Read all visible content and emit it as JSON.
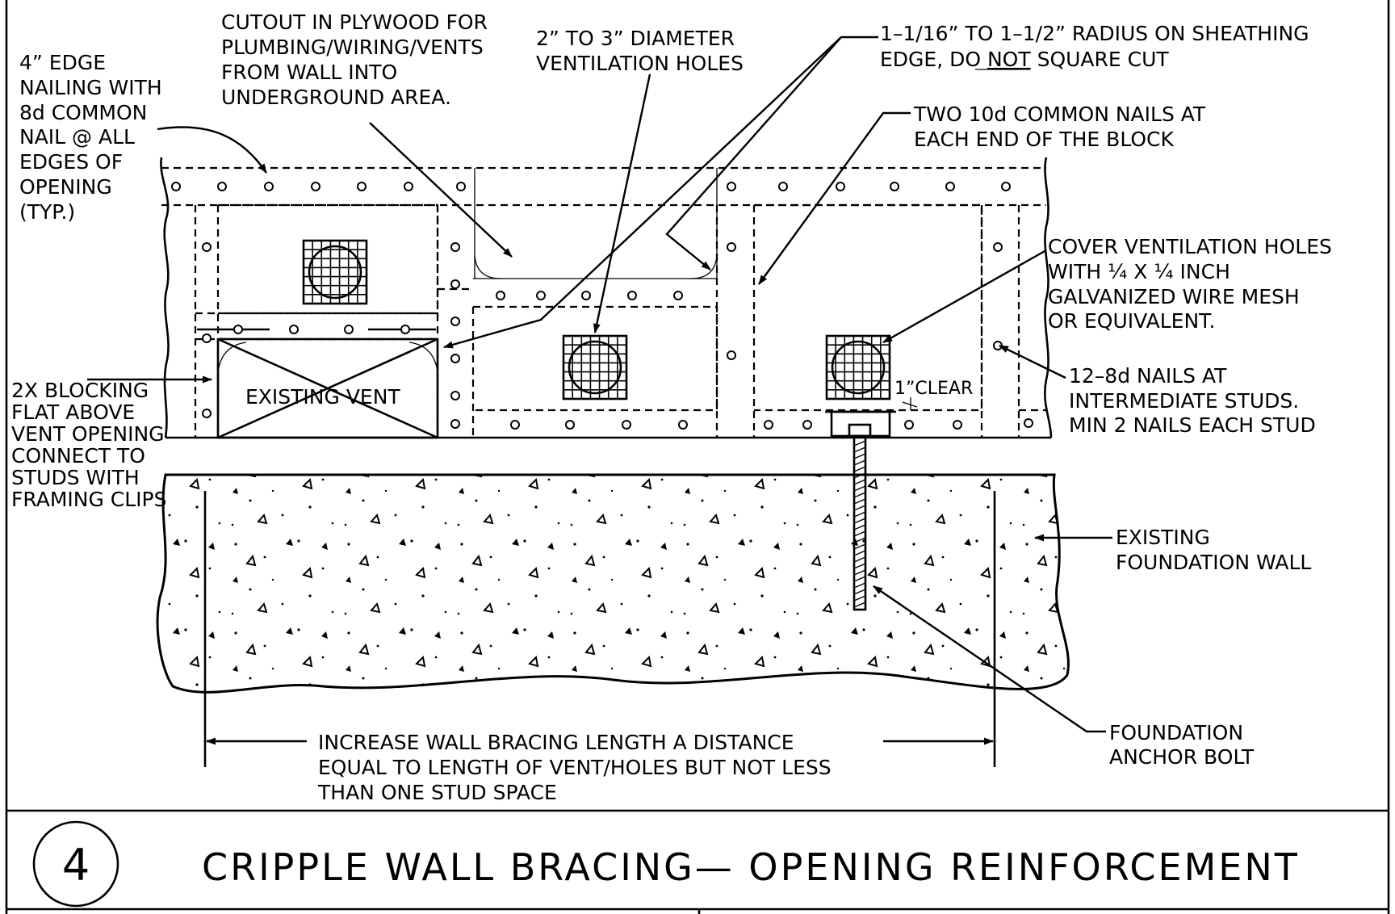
{
  "drawing": {
    "detail_number": "4",
    "title": "CRIPPLE WALL BRACING— OPENING REINFORCEMENT"
  },
  "callouts": {
    "edge_nailing": [
      "4” EDGE",
      "NAILING WITH",
      "8d COMMON",
      "NAIL @ ALL",
      "EDGES OF",
      "OPENING",
      "(TYP.)"
    ],
    "cutout": [
      "CUTOUT IN PLYWOOD FOR",
      "PLUMBING/WIRING/VENTS",
      "FROM WALL INTO",
      "UNDERGROUND AREA."
    ],
    "vent_holes": [
      "2” TO 3” DIAMETER",
      "VENTILATION HOLES"
    ],
    "radius_line1": "1–1/16” TO 1–1/2” RADIUS ON SHEATHING",
    "radius_line2_a": "EDGE, DO ",
    "radius_line2_b": "NOT",
    "radius_line2_c": " SQUARE CUT",
    "block_nails": [
      "TWO 10d COMMON NAILS AT",
      "EACH END OF THE BLOCK"
    ],
    "cover_mesh": [
      "COVER VENTILATION HOLES",
      "WITH ¼ X ¼ INCH",
      "GALVANIZED WIRE MESH",
      "OR EQUIVALENT."
    ],
    "intermediate_nails": [
      "12–8d NAILS AT",
      "INTERMEDIATE STUDS.",
      "MIN 2 NAILS EACH STUD"
    ],
    "blocking": [
      "2X BLOCKING",
      "FLAT ABOVE",
      "VENT OPENING",
      "CONNECT TO",
      "STUDS WITH",
      "FRAMING CLIPS"
    ],
    "existing_vent": "EXISTING VENT",
    "clear": "1”CLEAR",
    "foundation_wall": [
      "EXISTING",
      "FOUNDATION WALL"
    ],
    "anchor_bolt": [
      "FOUNDATION",
      "ANCHOR BOLT"
    ],
    "bracing_length": [
      "INCREASE WALL BRACING LENGTH A DISTANCE",
      "EQUAL TO LENGTH OF VENT/HOLES BUT NOT LESS",
      "THAN ONE STUD SPACE"
    ]
  }
}
